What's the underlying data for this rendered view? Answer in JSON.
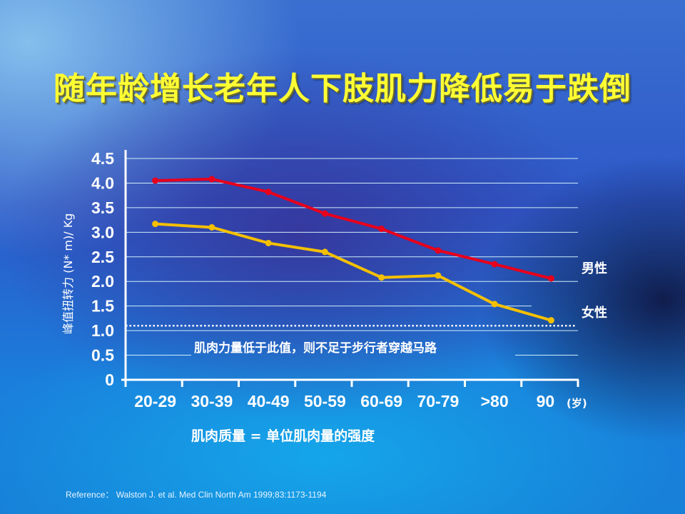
{
  "title": "随年龄增长老年人下肢肌力降低易于跌倒",
  "chart_data": {
    "type": "line",
    "title": "随年龄增长老年人下肢肌力降低易于跌倒",
    "xlabel": "肌肉质量 = 单位肌肉量的强度",
    "ylabel": "峰值扭转力 (N* m)/ Kg",
    "x_unit": "(岁)",
    "categories": [
      "20-29",
      "30-39",
      "40-49",
      "50-59",
      "60-69",
      "70-79",
      ">80",
      "90"
    ],
    "yticks": [
      "0",
      "0.5",
      "1.0",
      "1.5",
      "2.0",
      "2.5",
      "3.0",
      "3.5",
      "4.0",
      "4.5"
    ],
    "ylim": [
      0,
      4.5
    ],
    "grid": true,
    "series": [
      {
        "name": "男性",
        "color": "#e8001c",
        "values": [
          4.05,
          4.08,
          3.82,
          3.38,
          3.07,
          2.63,
          2.35,
          2.06
        ]
      },
      {
        "name": "女性",
        "color": "#f5c000",
        "values": [
          3.17,
          3.1,
          2.78,
          2.6,
          2.08,
          2.12,
          1.54,
          1.21
        ]
      }
    ],
    "threshold": {
      "value": 1.1,
      "label": "肌肉力量低于此值，则不足于步行者穿越马路"
    }
  },
  "reference": "Reference：  Walston J. et al. Med Clin North Am 1999;83:1173-1194"
}
